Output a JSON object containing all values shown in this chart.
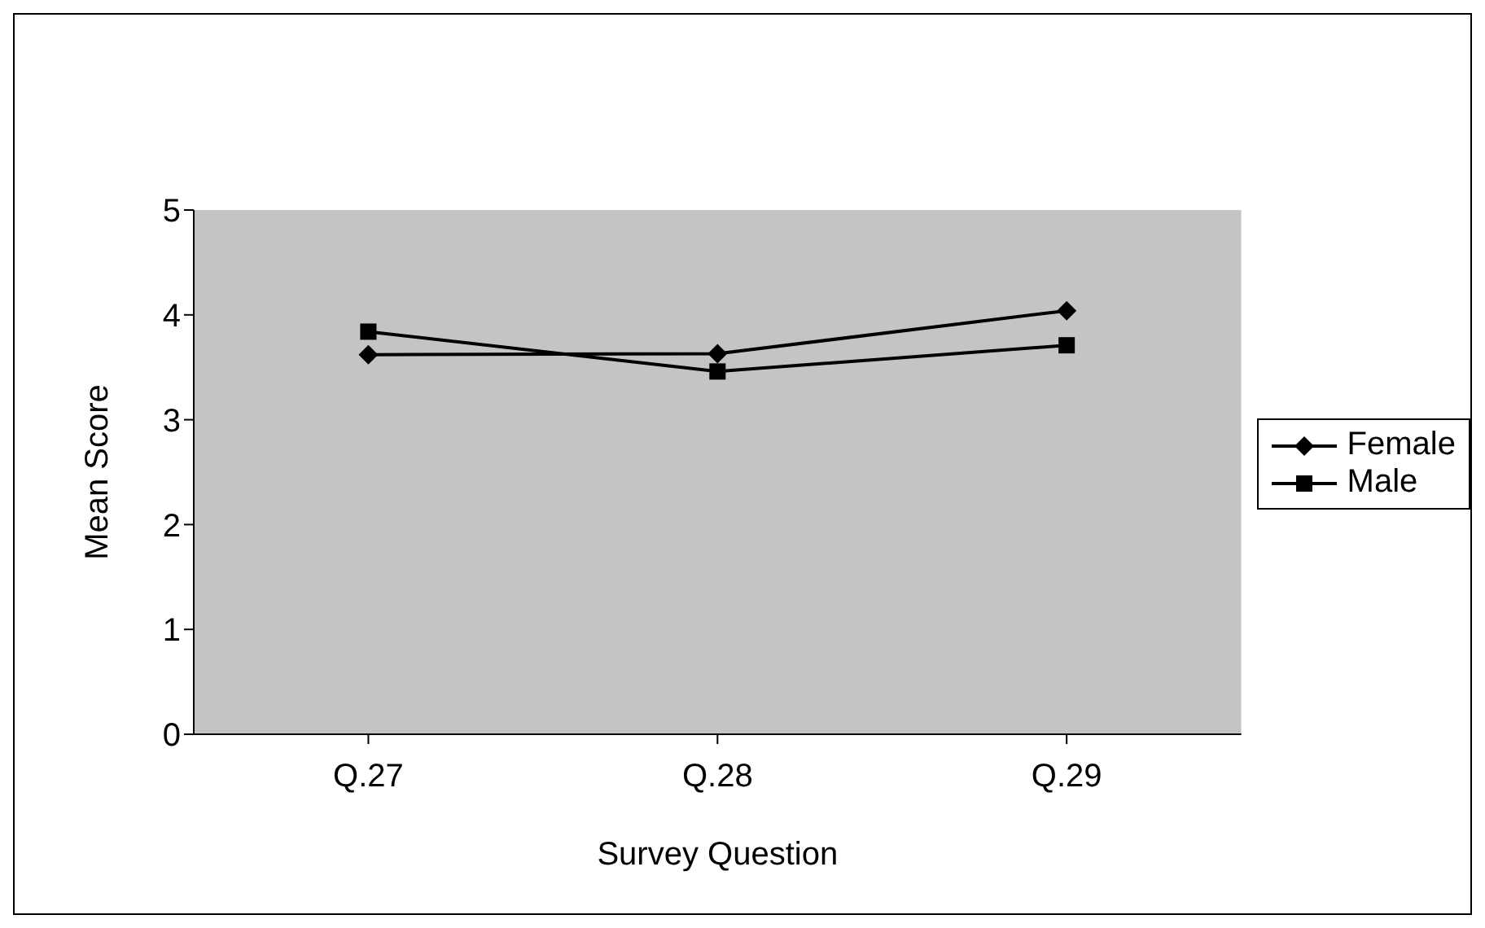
{
  "chart_data": {
    "type": "line",
    "xlabel": "Survey Question",
    "ylabel": "Mean Score",
    "categories": [
      "Q.27",
      "Q.28",
      "Q.29"
    ],
    "series": [
      {
        "name": "Female",
        "color": "#000000",
        "marker": "diamond",
        "values": [
          3.62,
          3.63,
          4.04
        ]
      },
      {
        "name": "Male",
        "color": "#000000",
        "marker": "square",
        "values": [
          3.84,
          3.46,
          3.71
        ]
      }
    ],
    "ylim": [
      0,
      5
    ],
    "yticks": [
      0,
      1,
      2,
      3,
      4,
      5
    ],
    "grid": false,
    "legend": "right"
  }
}
